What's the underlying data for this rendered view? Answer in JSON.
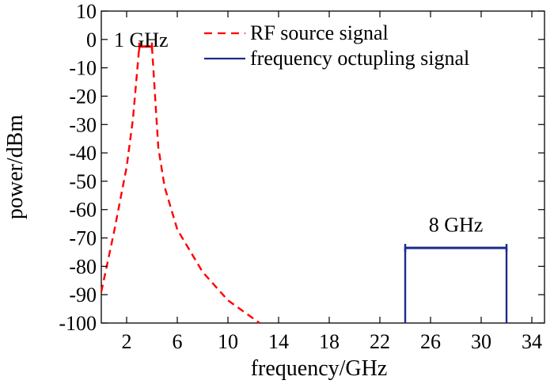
{
  "chart_data": {
    "type": "line",
    "title": "",
    "xlabel": "frequency/GHz",
    "ylabel": "power/dBm",
    "xlim": [
      0,
      35
    ],
    "ylim": [
      -100,
      10
    ],
    "xticks": [
      2,
      6,
      10,
      14,
      18,
      22,
      26,
      30,
      34
    ],
    "yticks": [
      10,
      0,
      -10,
      -20,
      -30,
      -40,
      -50,
      -60,
      -70,
      -80,
      -90,
      -100
    ],
    "grid": false,
    "legend_position": "top-right",
    "series": [
      {
        "name": "RF source signal",
        "style": "dashed",
        "color": "#ff0000",
        "x": [
          0,
          1,
          2,
          2.5,
          3,
          3,
          3.5,
          4,
          4,
          4.5,
          5,
          6,
          8,
          10,
          12.5
        ],
        "y": [
          -89,
          -68,
          -45,
          -28,
          -2.5,
          -2.5,
          -2.5,
          -2.5,
          -2.5,
          -38,
          -52,
          -67,
          -82,
          -92,
          -100
        ]
      },
      {
        "name": "frequency octupling signal",
        "style": "solid",
        "color": "#1f2a8c",
        "x": [
          24,
          24,
          32,
          32
        ],
        "y": [
          -100,
          -73.5,
          -73.5,
          -100
        ]
      }
    ],
    "annotations": [
      {
        "text": "1 GHz",
        "x1": 3,
        "x2": 4,
        "y": -2.5,
        "color": "#ff0000",
        "label_x": 1,
        "label_y": 0
      },
      {
        "text": "8 GHz",
        "x1": 24,
        "x2": 32,
        "y": -73.5,
        "color": "#1f2a8c",
        "label_x": 28,
        "label_y": -70
      }
    ]
  }
}
